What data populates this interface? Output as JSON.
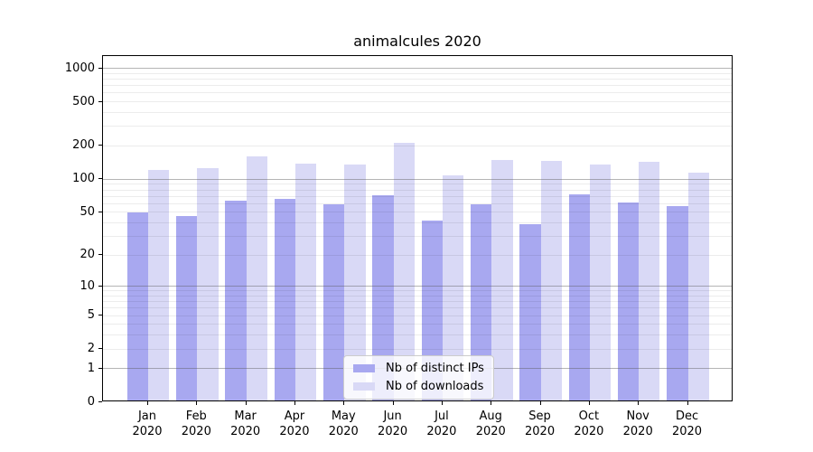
{
  "title": "animalcules 2020",
  "chart_data": {
    "type": "bar",
    "title": "animalcules 2020",
    "x_year": "2020",
    "categories": [
      "Jan",
      "Feb",
      "Mar",
      "Apr",
      "May",
      "Jun",
      "Jul",
      "Aug",
      "Sep",
      "Oct",
      "Nov",
      "Dec"
    ],
    "series": [
      {
        "name": "Nb of distinct IPs",
        "color": "#a8a8f0",
        "values": [
          48,
          45,
          62,
          65,
          58,
          69,
          41,
          57,
          38,
          71,
          60,
          55
        ]
      },
      {
        "name": "Nb of downloads",
        "color": "#d9d9f6",
        "values": [
          117,
          122,
          157,
          134,
          132,
          208,
          105,
          146,
          142,
          131,
          140,
          112
        ]
      }
    ],
    "y_ticks": [
      0,
      1,
      2,
      5,
      10,
      20,
      50,
      100,
      200,
      500,
      1000
    ],
    "y_minor_gridlines": [
      2,
      3,
      4,
      5,
      6,
      7,
      8,
      9,
      20,
      30,
      40,
      50,
      60,
      70,
      80,
      90,
      200,
      300,
      400,
      500,
      600,
      700,
      800,
      900
    ],
    "y_major_gridlines": [
      1,
      10,
      100,
      1000
    ],
    "y_scale": "log10(1+v)",
    "ylim": [
      0,
      1280
    ],
    "grid": true,
    "legend_position": "lower center"
  }
}
